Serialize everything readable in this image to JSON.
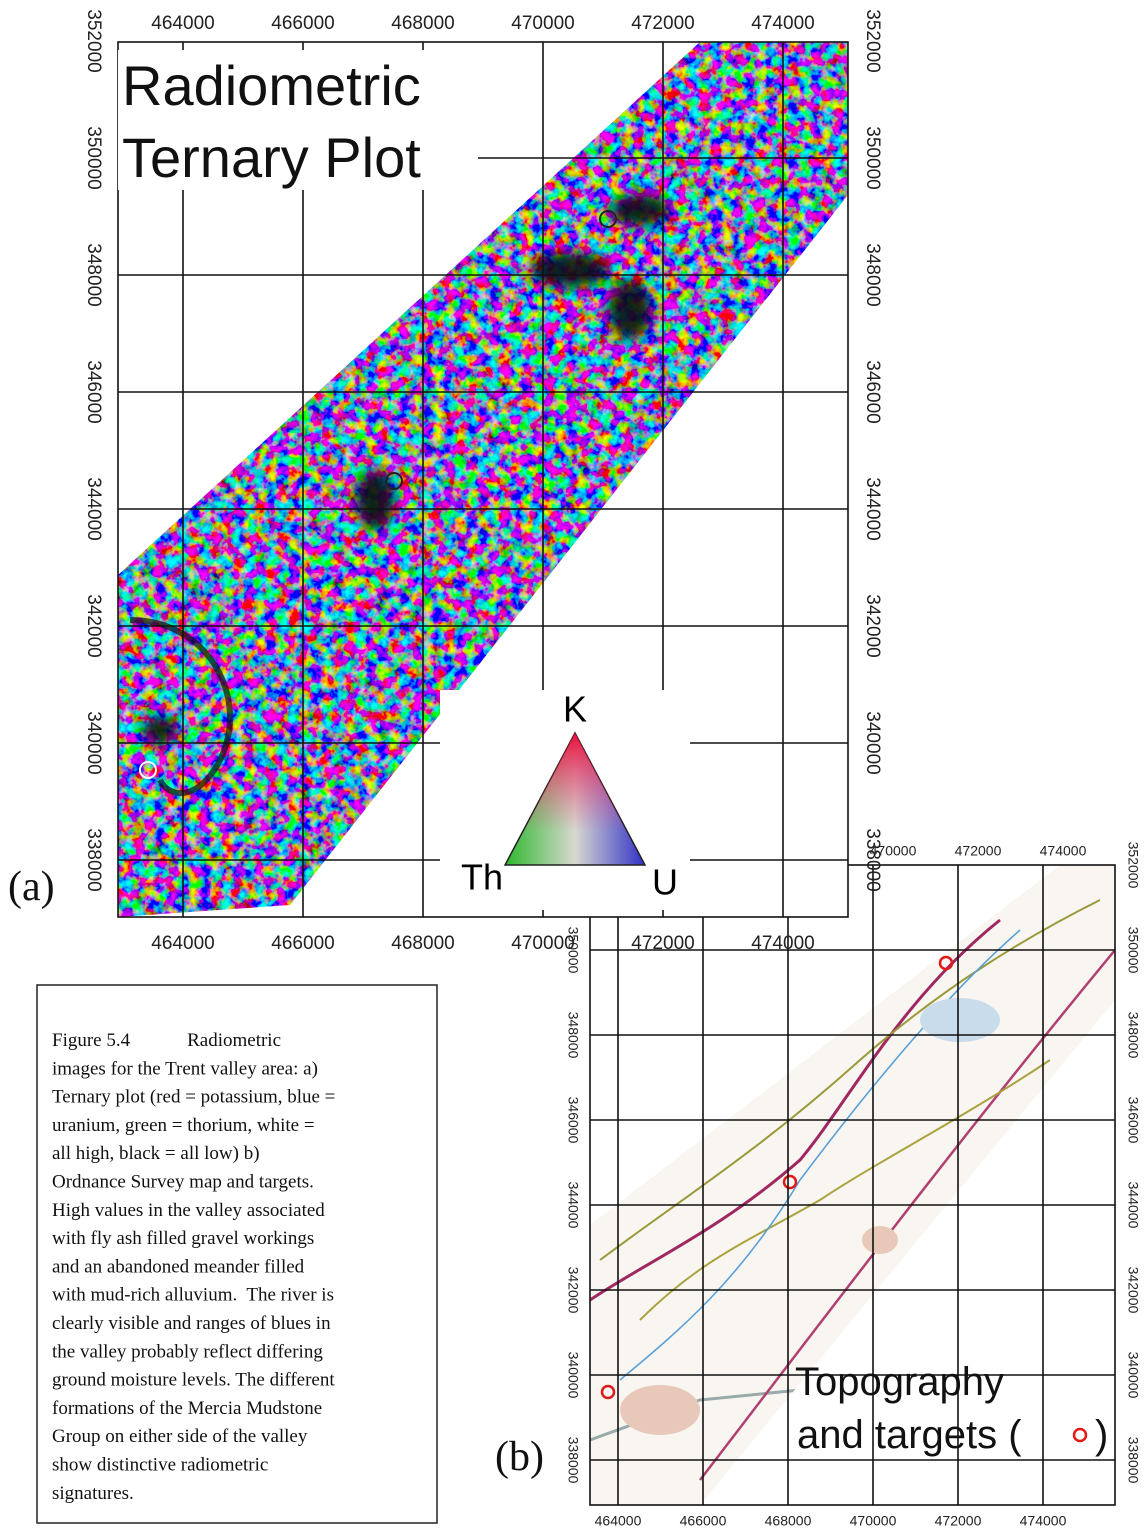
{
  "panel_a": {
    "label": "(a)",
    "title_lines": [
      "Radiometric",
      "Ternary Plot"
    ],
    "xticks": [
      464000,
      466000,
      468000,
      470000,
      472000,
      474000
    ],
    "yticks": [
      338000,
      340000,
      342000,
      344000,
      346000,
      348000,
      350000,
      352000
    ],
    "legend": {
      "top": "K",
      "left": "Th",
      "right": "U"
    }
  },
  "panel_b": {
    "label": "(b)",
    "title_lines": [
      "Topography",
      "and targets ("
    ],
    "title_end": ")",
    "xticks": [
      464000,
      466000,
      468000,
      470000,
      472000,
      474000
    ],
    "top_ticks": [
      470000,
      472000,
      474000
    ],
    "yticks": [
      338000,
      340000,
      342000,
      344000,
      346000,
      348000,
      350000,
      352000
    ],
    "left_ticks": [
      338000,
      340000,
      342000,
      344000,
      346000,
      348000,
      350000
    ]
  },
  "caption": {
    "lines": [
      "Figure 5.4            Radiometric",
      "images for the Trent valley area: a)",
      "Ternary plot (red = potassium, blue =",
      "uranium, green = thorium, white =",
      "all high, black = all low) b)",
      "Ordnance Survey map and targets.",
      "High values in the valley associated",
      "with fly ash filled gravel workings",
      "and an abandoned meander filled",
      "with mud-rich alluvium.  The river is",
      "clearly visible and ranges of blues in",
      "the valley probably reflect differing",
      "ground moisture levels. The different",
      "formations of the Mercia Mudstone",
      "Group on either side of the valley",
      "show distinctive radiometric",
      "signatures."
    ]
  }
}
